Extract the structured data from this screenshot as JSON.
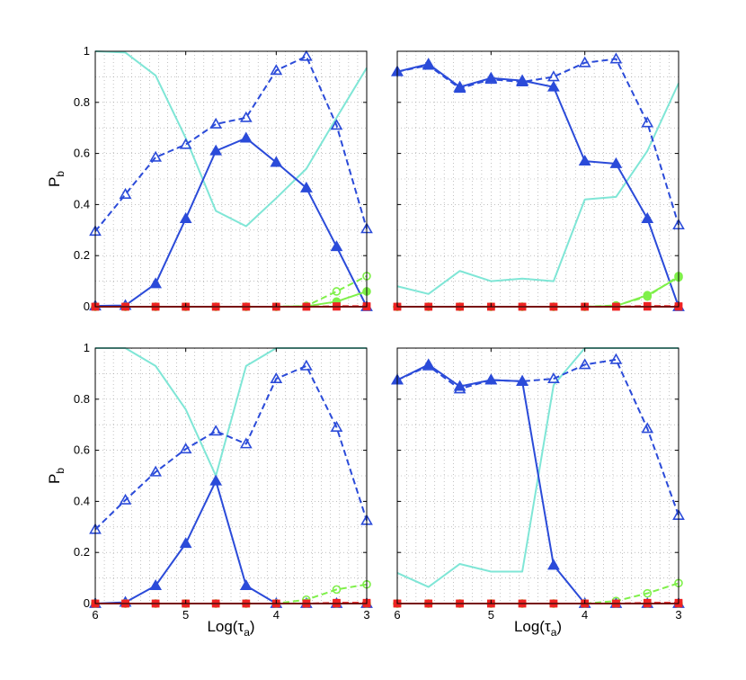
{
  "chart_data": [
    {
      "type": "line",
      "xlabel": "",
      "ylabel": "P",
      "ylabel_sub": "b",
      "xlim": [
        6,
        3
      ],
      "ylim": [
        0,
        1
      ],
      "x_ticks": [
        6,
        5,
        4,
        3
      ],
      "y_ticks": [
        0,
        0.2,
        0.4,
        0.6,
        0.8,
        1
      ],
      "x_tick_labels": [],
      "y_tick_labels": [
        "0",
        "0.2",
        "0.4",
        "0.6",
        "0.8",
        "1"
      ],
      "grid": true,
      "x": [
        6,
        5.667,
        5.333,
        5,
        4.667,
        4.333,
        4,
        3.667,
        3.333,
        3
      ],
      "series": [
        {
          "color": "#7fe6d6",
          "style": "solid",
          "marker": "none",
          "values": [
            1.0,
            0.995,
            0.905,
            0.66,
            0.375,
            0.315,
            0.425,
            0.54,
            0.74,
            0.935
          ]
        },
        {
          "color": "#2b4bd9",
          "style": "dashed",
          "marker": "triangle-open",
          "values": [
            0.295,
            0.44,
            0.585,
            0.635,
            0.715,
            0.74,
            0.925,
            0.98,
            0.71,
            0.305
          ]
        },
        {
          "color": "#2b4bd9",
          "style": "solid",
          "marker": "triangle-filled",
          "values": [
            0.003,
            0.005,
            0.09,
            0.345,
            0.61,
            0.66,
            0.565,
            0.465,
            0.235,
            0.0
          ]
        },
        {
          "color": "#7ff04a",
          "style": "dashed",
          "marker": "circle-open",
          "values": [
            0,
            0,
            0,
            0,
            0,
            0,
            0,
            0.003,
            0.06,
            0.12
          ]
        },
        {
          "color": "#7ff04a",
          "style": "solid",
          "marker": "circle-filled",
          "values": [
            0,
            0,
            0,
            0,
            0,
            0,
            0,
            0.002,
            0.02,
            0.06
          ]
        },
        {
          "color": "#ee2222",
          "style": "dashed",
          "marker": "square-open",
          "values": [
            0,
            0,
            0,
            0,
            0,
            0,
            0,
            0,
            0.002,
            0.002
          ]
        },
        {
          "color": "#ee2222",
          "style": "solid",
          "marker": "square-filled",
          "values": [
            0,
            0,
            0,
            0,
            0,
            0,
            0,
            0,
            0,
            0
          ]
        }
      ]
    },
    {
      "type": "line",
      "xlabel": "",
      "ylabel": "",
      "xlim": [
        6,
        3
      ],
      "ylim": [
        0,
        1
      ],
      "x_ticks": [
        6,
        5,
        4,
        3
      ],
      "y_ticks": [
        0,
        0.2,
        0.4,
        0.6,
        0.8,
        1
      ],
      "x_tick_labels": [],
      "y_tick_labels": [],
      "grid": true,
      "x": [
        6,
        5.667,
        5.333,
        5,
        4.667,
        4.333,
        4,
        3.667,
        3.333,
        3
      ],
      "series": [
        {
          "color": "#7fe6d6",
          "style": "solid",
          "marker": "none",
          "values": [
            0.08,
            0.05,
            0.14,
            0.1,
            0.11,
            0.1,
            0.42,
            0.43,
            0.61,
            0.875
          ]
        },
        {
          "color": "#2b4bd9",
          "style": "dashed",
          "marker": "triangle-open",
          "values": [
            0.92,
            0.945,
            0.855,
            0.89,
            0.88,
            0.9,
            0.955,
            0.97,
            0.72,
            0.32
          ]
        },
        {
          "color": "#2b4bd9",
          "style": "solid",
          "marker": "triangle-filled",
          "values": [
            0.92,
            0.95,
            0.86,
            0.895,
            0.885,
            0.86,
            0.57,
            0.56,
            0.345,
            0.0
          ]
        },
        {
          "color": "#7ff04a",
          "style": "dashed",
          "marker": "circle-open",
          "values": [
            0,
            0,
            0,
            0,
            0,
            0,
            0,
            0.005,
            0.04,
            0.12
          ]
        },
        {
          "color": "#7ff04a",
          "style": "solid",
          "marker": "circle-filled",
          "values": [
            0,
            0,
            0,
            0,
            0,
            0,
            0,
            0.003,
            0.045,
            0.115
          ]
        },
        {
          "color": "#ee2222",
          "style": "dashed",
          "marker": "square-open",
          "values": [
            0,
            0,
            0,
            0,
            0,
            0,
            0,
            0,
            0.003,
            0.002
          ]
        },
        {
          "color": "#ee2222",
          "style": "solid",
          "marker": "square-filled",
          "values": [
            0,
            0,
            0,
            0,
            0,
            0,
            0,
            0,
            0,
            0
          ]
        }
      ]
    },
    {
      "type": "line",
      "xlabel": "Log(τ",
      "xlabel_sub": "a",
      "xlabel_tail": ")",
      "ylabel": "P",
      "ylabel_sub": "b",
      "xlim": [
        6,
        3
      ],
      "ylim": [
        0,
        1
      ],
      "x_ticks": [
        6,
        5,
        4,
        3
      ],
      "y_ticks": [
        0,
        0.2,
        0.4,
        0.6,
        0.8,
        1
      ],
      "x_tick_labels": [
        "6",
        "5",
        "4",
        "3"
      ],
      "y_tick_labels": [
        "0",
        "0.2",
        "0.4",
        "0.6",
        "0.8",
        "1"
      ],
      "grid": true,
      "x": [
        6,
        5.667,
        5.333,
        5,
        4.667,
        4.333,
        4,
        3.667,
        3.333,
        3
      ],
      "series": [
        {
          "color": "#7fe6d6",
          "style": "solid",
          "marker": "none",
          "values": [
            1.0,
            1.0,
            0.93,
            0.76,
            0.5,
            0.93,
            1.0,
            1.0,
            1.0,
            1.0
          ]
        },
        {
          "color": "#2b4bd9",
          "style": "dashed",
          "marker": "triangle-open",
          "values": [
            0.29,
            0.405,
            0.515,
            0.605,
            0.675,
            0.625,
            0.88,
            0.93,
            0.69,
            0.325
          ]
        },
        {
          "color": "#2b4bd9",
          "style": "solid",
          "marker": "triangle-filled",
          "values": [
            0.0,
            0.005,
            0.07,
            0.235,
            0.48,
            0.07,
            0.0,
            0.0,
            0.0,
            0.0
          ]
        },
        {
          "color": "#7ff04a",
          "style": "dashed",
          "marker": "circle-open",
          "values": [
            0,
            0,
            0,
            0,
            0,
            0,
            0,
            0.015,
            0.055,
            0.075
          ]
        },
        {
          "color": "#7ff04a",
          "style": "solid",
          "marker": "circle-filled",
          "values": [
            0,
            0,
            0,
            0,
            0,
            0,
            0,
            0,
            0,
            0
          ]
        },
        {
          "color": "#ee2222",
          "style": "dashed",
          "marker": "square-open",
          "values": [
            0,
            0,
            0,
            0,
            0,
            0,
            0,
            0,
            0.003,
            0.003
          ]
        },
        {
          "color": "#ee2222",
          "style": "solid",
          "marker": "square-filled",
          "values": [
            0,
            0,
            0,
            0,
            0,
            0,
            0,
            0,
            0,
            0
          ]
        }
      ]
    },
    {
      "type": "line",
      "xlabel": "Log(τ",
      "xlabel_sub": "a",
      "xlabel_tail": ")",
      "ylabel": "",
      "xlim": [
        6,
        3
      ],
      "ylim": [
        0,
        1
      ],
      "x_ticks": [
        6,
        5,
        4,
        3
      ],
      "y_ticks": [
        0,
        0.2,
        0.4,
        0.6,
        0.8,
        1
      ],
      "x_tick_labels": [
        "6",
        "5",
        "4",
        "3"
      ],
      "y_tick_labels": [],
      "grid": true,
      "x": [
        6,
        5.667,
        5.333,
        5,
        4.667,
        4.333,
        4,
        3.667,
        3.333,
        3
      ],
      "series": [
        {
          "color": "#7fe6d6",
          "style": "solid",
          "marker": "none",
          "values": [
            0.12,
            0.065,
            0.155,
            0.125,
            0.125,
            0.855,
            1.0,
            1.0,
            1.0,
            1.0
          ]
        },
        {
          "color": "#2b4bd9",
          "style": "dashed",
          "marker": "triangle-open",
          "values": [
            0.875,
            0.93,
            0.84,
            0.875,
            0.87,
            0.88,
            0.935,
            0.955,
            0.685,
            0.345
          ]
        },
        {
          "color": "#2b4bd9",
          "style": "solid",
          "marker": "triangle-filled",
          "values": [
            0.875,
            0.935,
            0.85,
            0.875,
            0.87,
            0.15,
            0.0,
            0.0,
            0.0,
            0.0
          ]
        },
        {
          "color": "#7ff04a",
          "style": "dashed",
          "marker": "circle-open",
          "values": [
            0,
            0,
            0,
            0,
            0,
            0,
            0,
            0.01,
            0.04,
            0.08
          ]
        },
        {
          "color": "#7ff04a",
          "style": "solid",
          "marker": "circle-filled",
          "values": [
            0,
            0,
            0,
            0,
            0,
            0,
            0,
            0,
            0,
            0
          ]
        },
        {
          "color": "#ee2222",
          "style": "dashed",
          "marker": "square-open",
          "values": [
            0,
            0,
            0,
            0,
            0,
            0,
            0,
            0,
            0.003,
            0.003
          ]
        },
        {
          "color": "#ee2222",
          "style": "solid",
          "marker": "square-filled",
          "values": [
            0,
            0,
            0,
            0,
            0,
            0,
            0,
            0,
            0,
            0
          ]
        }
      ]
    }
  ]
}
